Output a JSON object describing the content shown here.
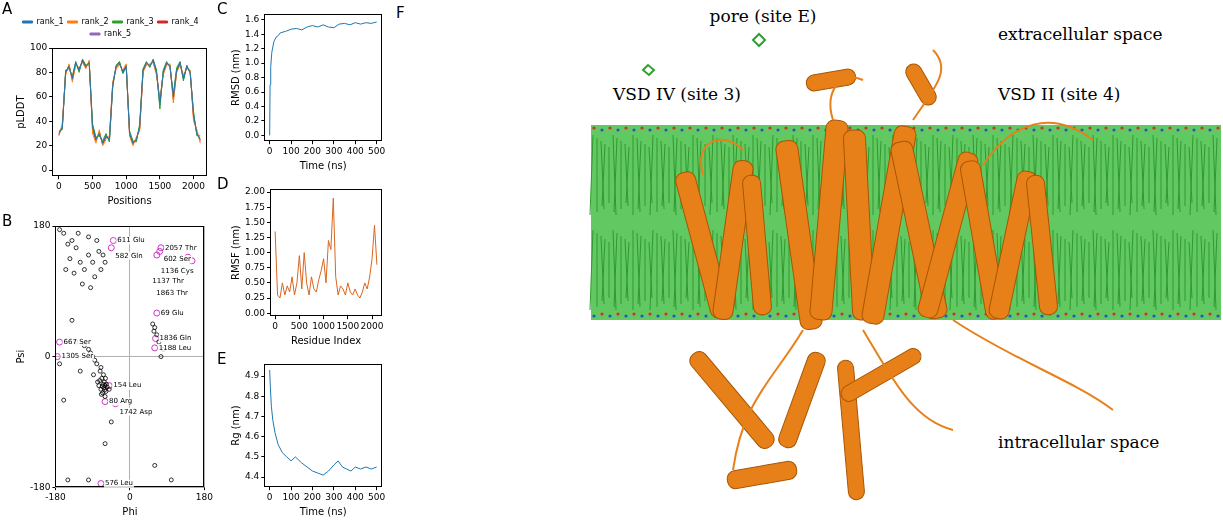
{
  "chart_data": [
    {
      "panel": "A",
      "type": "line",
      "x_label": "Positions",
      "y_label": "pLDDT",
      "xlim": [
        -100,
        2200
      ],
      "xticks": [
        0,
        500,
        1000,
        1500,
        2000
      ],
      "ylim": [
        -5,
        100
      ],
      "yticks": [
        0,
        20,
        40,
        60,
        80,
        100
      ],
      "grid": false,
      "legend": "top",
      "x": [
        0,
        50,
        100,
        150,
        200,
        250,
        300,
        350,
        400,
        450,
        500,
        550,
        600,
        650,
        700,
        750,
        800,
        850,
        900,
        950,
        1000,
        1050,
        1100,
        1150,
        1200,
        1250,
        1300,
        1350,
        1400,
        1450,
        1500,
        1550,
        1600,
        1650,
        1700,
        1750,
        1800,
        1850,
        1900,
        1950,
        2000,
        2050,
        2100
      ],
      "series": [
        {
          "name": "rank_1",
          "color": "#1f77b4",
          "values": [
            30,
            35,
            80,
            85,
            75,
            88,
            82,
            90,
            85,
            88,
            35,
            25,
            30,
            22,
            28,
            25,
            70,
            85,
            88,
            80,
            85,
            30,
            22,
            25,
            35,
            82,
            88,
            85,
            90,
            80,
            55,
            80,
            88,
            85,
            60,
            82,
            88,
            75,
            85,
            80,
            45,
            30,
            25
          ]
        },
        {
          "name": "rank_2",
          "color": "#ff7f0e",
          "values": [
            28,
            38,
            78,
            87,
            72,
            86,
            84,
            88,
            83,
            90,
            30,
            22,
            33,
            20,
            25,
            28,
            72,
            83,
            86,
            82,
            87,
            28,
            20,
            27,
            32,
            80,
            86,
            87,
            88,
            78,
            58,
            78,
            86,
            87,
            55,
            80,
            86,
            78,
            83,
            82,
            40,
            33,
            22
          ]
        },
        {
          "name": "rank_3",
          "color": "#2ca02c",
          "values": [
            32,
            33,
            82,
            83,
            77,
            89,
            80,
            91,
            86,
            87,
            38,
            27,
            28,
            24,
            30,
            23,
            68,
            86,
            89,
            79,
            84,
            32,
            24,
            23,
            38,
            83,
            89,
            84,
            91,
            82,
            50,
            82,
            89,
            84,
            62,
            84,
            89,
            73,
            86,
            79,
            48,
            28,
            28
          ]
        },
        {
          "name": "rank_4",
          "color": "#d62728",
          "values": [
            29,
            36,
            79,
            86,
            74,
            87,
            83,
            89,
            84,
            89,
            33,
            24,
            31,
            21,
            27,
            26,
            71,
            84,
            87,
            81,
            86,
            29,
            21,
            26,
            34,
            81,
            87,
            86,
            89,
            79,
            56,
            79,
            87,
            86,
            58,
            81,
            87,
            76,
            84,
            81,
            43,
            31,
            24
          ]
        },
        {
          "name": "rank_5",
          "color": "#9467bd",
          "values": [
            31,
            34,
            81,
            84,
            76,
            88,
            81,
            90,
            85,
            88,
            36,
            26,
            29,
            23,
            29,
            24,
            69,
            85,
            88,
            80,
            85,
            31,
            23,
            24,
            36,
            82,
            88,
            85,
            90,
            81,
            53,
            81,
            88,
            85,
            61,
            83,
            88,
            74,
            85,
            80,
            46,
            29,
            26
          ]
        }
      ]
    },
    {
      "panel": "B",
      "type": "scatter",
      "x_label": "Phi",
      "y_label": "Psi",
      "xlim": [
        -180,
        180
      ],
      "xticks": [
        -180,
        0,
        180
      ],
      "ylim": [
        -180,
        180
      ],
      "yticks": [
        -180,
        0,
        180
      ],
      "grid": true,
      "series": [
        {
          "color": "#000000",
          "marker": "circle",
          "x": [
            -63,
            -60,
            -65,
            -70,
            -58,
            -62,
            -68,
            -75,
            -55,
            -66,
            -72,
            -80,
            -85,
            -90,
            -78,
            -64,
            -60,
            -50,
            -95,
            -100,
            -70,
            -88,
            -110,
            -120,
            -130,
            -140,
            -120,
            -130,
            -140,
            -110,
            -100,
            -90,
            -150,
            -160,
            -75,
            -65,
            -80,
            -70,
            -125,
            -145,
            -135,
            -100,
            -85,
            -115,
            -60,
            -95,
            -170,
            -155,
            60,
            55,
            65,
            70,
            58,
            80,
            75,
            -160,
            -150,
            -100,
            60,
            100,
            -170,
            -45,
            -60,
            -67,
            -61,
            -57,
            -73,
            -69,
            -59
          ],
          "y": [
            -43,
            -40,
            -38,
            -45,
            -48,
            -35,
            -30,
            -40,
            -42,
            -50,
            -20,
            -10,
            -5,
            0,
            -35,
            -25,
            -55,
            -45,
            5,
            10,
            -15,
            -25,
            15,
            -20,
            20,
            50,
            130,
            150,
            160,
            120,
            140,
            130,
            155,
            170,
            145,
            140,
            160,
            120,
            170,
            135,
            115,
            165,
            110,
            100,
            130,
            95,
            175,
            120,
            40,
            45,
            30,
            20,
            35,
            10,
            0,
            -60,
            -170,
            -170,
            -150,
            -170,
            -10,
            -90,
            -120,
            -41,
            -46,
            -38,
            -33,
            -52,
            -30
          ]
        }
      ],
      "outliers": {
        "color": "#cc33cc",
        "marker": "circle",
        "points": [
          {
            "x": -40,
            "y": 160,
            "label": "611 Glu"
          },
          {
            "x": -45,
            "y": 150,
            "label": "582 Gln"
          },
          {
            "x": 75,
            "y": 150,
            "label": "2057 Thr"
          },
          {
            "x": 72,
            "y": 145,
            "label": "602 Ser"
          },
          {
            "x": 65,
            "y": 140,
            "label": "1136 Cys"
          },
          {
            "x": 140,
            "y": 137,
            "label": "1137 Thr"
          },
          {
            "x": 150,
            "y": 132,
            "label": "1863 Thr"
          },
          {
            "x": 65,
            "y": 60,
            "label": "69 Glu"
          },
          {
            "x": 62,
            "y": 25,
            "label": "1836 Gln"
          },
          {
            "x": 60,
            "y": 12,
            "label": "1188 Leu"
          },
          {
            "x": -170,
            "y": 20,
            "label": "667 Ser"
          },
          {
            "x": -175,
            "y": 0,
            "label": "1305 Ser"
          },
          {
            "x": -50,
            "y": -40,
            "label": "154 Leu"
          },
          {
            "x": -60,
            "y": -62,
            "label": "80 Arg"
          },
          {
            "x": -35,
            "y": -65,
            "label": "1742 Asp"
          },
          {
            "x": -70,
            "y": -175,
            "label": "576 Leu"
          }
        ]
      }
    },
    {
      "panel": "C",
      "type": "line",
      "x_label": "Time (ns)",
      "y_label": "RMSD (nm)",
      "xlim": [
        -25,
        525
      ],
      "xticks": [
        0,
        100,
        200,
        300,
        400,
        500
      ],
      "ylim": [
        -0.08,
        1.68
      ],
      "yticks": [
        {
          "value": 0,
          "label": "0.0"
        },
        0.2,
        0.4,
        0.6,
        0.8,
        {
          "value": 1,
          "label": "1.0"
        },
        1.2,
        1.4,
        1.6
      ],
      "grid": false,
      "x": [
        0,
        2,
        5,
        10,
        20,
        30,
        40,
        50,
        75,
        100,
        125,
        150,
        175,
        200,
        225,
        250,
        275,
        300,
        325,
        350,
        375,
        400,
        425,
        450,
        475,
        500
      ],
      "series": [
        {
          "color": "#1f77b4",
          "values": [
            0.0,
            0.7,
            0.95,
            1.15,
            1.3,
            1.36,
            1.38,
            1.42,
            1.44,
            1.47,
            1.48,
            1.46,
            1.5,
            1.52,
            1.5,
            1.53,
            1.5,
            1.49,
            1.54,
            1.55,
            1.53,
            1.56,
            1.54,
            1.56,
            1.55,
            1.57
          ]
        }
      ]
    },
    {
      "panel": "D",
      "type": "line",
      "x_label": "Residue Index",
      "y_label": "RMSF (nm)",
      "xlim": [
        -105,
        2205
      ],
      "xticks": [
        0,
        500,
        1000,
        1500,
        2000
      ],
      "ylim": [
        -0.05,
        2.05
      ],
      "yticks": [
        {
          "value": 0,
          "label": "0.00"
        },
        0.25,
        {
          "value": 0.5,
          "label": "0.50"
        },
        0.75,
        {
          "value": 1,
          "label": "1.00"
        },
        1.25,
        {
          "value": 1.5,
          "label": "1.50"
        },
        1.75,
        {
          "value": 2,
          "label": "2.00"
        }
      ],
      "grid": false,
      "x": [
        0,
        50,
        100,
        150,
        200,
        250,
        300,
        350,
        400,
        450,
        500,
        550,
        600,
        650,
        700,
        750,
        800,
        850,
        900,
        950,
        1000,
        1050,
        1100,
        1150,
        1200,
        1250,
        1300,
        1350,
        1400,
        1450,
        1500,
        1550,
        1600,
        1650,
        1700,
        1750,
        1800,
        1850,
        1900,
        1950,
        2000,
        2050,
        2100
      ],
      "series": [
        {
          "color": "#d9661f",
          "values": [
            1.35,
            0.3,
            0.25,
            0.5,
            0.3,
            0.45,
            0.35,
            0.6,
            0.3,
            0.5,
            0.95,
            0.4,
            1.0,
            0.5,
            0.3,
            0.6,
            0.4,
            0.35,
            0.55,
            0.7,
            0.9,
            0.5,
            1.2,
            1.05,
            1.9,
            0.6,
            0.3,
            0.45,
            0.4,
            0.3,
            0.5,
            0.35,
            0.3,
            0.4,
            0.3,
            0.25,
            0.35,
            0.5,
            0.4,
            0.6,
            0.9,
            1.45,
            0.8
          ]
        }
      ]
    },
    {
      "panel": "E",
      "type": "line",
      "x_label": "Time (ns)",
      "y_label": "Rg (nm)",
      "xlim": [
        -25,
        525
      ],
      "xticks": [
        0,
        100,
        200,
        300,
        400,
        500
      ],
      "ylim": [
        4.35,
        4.96
      ],
      "yticks": [
        4.4,
        4.5,
        4.6,
        4.7,
        4.8,
        4.9
      ],
      "grid": false,
      "x": [
        0,
        3,
        8,
        15,
        25,
        40,
        60,
        80,
        100,
        120,
        150,
        175,
        200,
        225,
        250,
        275,
        300,
        320,
        340,
        360,
        380,
        400,
        425,
        450,
        475,
        500
      ],
      "series": [
        {
          "color": "#1f77b4",
          "values": [
            4.93,
            4.85,
            4.75,
            4.68,
            4.62,
            4.56,
            4.52,
            4.5,
            4.48,
            4.5,
            4.47,
            4.45,
            4.43,
            4.42,
            4.41,
            4.43,
            4.46,
            4.48,
            4.45,
            4.44,
            4.43,
            4.45,
            4.44,
            4.45,
            4.44,
            4.45
          ]
        }
      ]
    }
  ],
  "image": {
    "panel": "F",
    "labels": [
      "pore (site E)",
      "extracellular space",
      "VSD IV (site 3)",
      "VSD II (site 4)",
      "intracellular space"
    ]
  }
}
